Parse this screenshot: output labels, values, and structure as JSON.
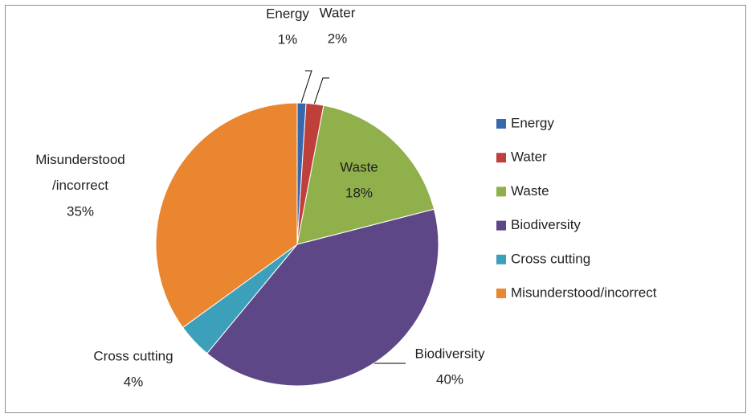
{
  "chart_data": {
    "type": "pie",
    "categories": [
      "Energy",
      "Water",
      "Waste",
      "Biodiversity",
      "Cross cutting",
      "Misunderstood/incorrect"
    ],
    "values": [
      1,
      2,
      18,
      40,
      4,
      35
    ],
    "value_labels": [
      "1%",
      "2%",
      "18%",
      "40%",
      "4%",
      "35%"
    ],
    "colors": [
      "#3568ad",
      "#bf3f3b",
      "#8fb04a",
      "#5e4787",
      "#3ca0ba",
      "#ea8530"
    ],
    "legend": "right"
  }
}
